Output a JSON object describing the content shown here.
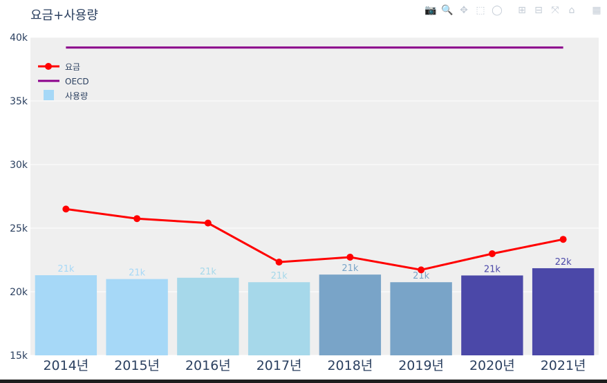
{
  "title": "요금+사용량",
  "modebar": [
    {
      "name": "camera-icon",
      "glyph": "📷"
    },
    {
      "name": "zoom-icon",
      "glyph": "🔍"
    },
    {
      "name": "pan-icon",
      "glyph": "✥"
    },
    {
      "name": "box-select-icon",
      "glyph": "⬚"
    },
    {
      "name": "lasso-icon",
      "glyph": "◯"
    },
    {
      "name": "zoom-in-icon",
      "glyph": "⊞"
    },
    {
      "name": "zoom-out-icon",
      "glyph": "⊟"
    },
    {
      "name": "autoscale-icon",
      "glyph": "⤧"
    },
    {
      "name": "home-icon",
      "glyph": "⌂"
    },
    {
      "name": "plotly-logo-icon",
      "glyph": "▦"
    }
  ],
  "chart_data": {
    "type": "bar",
    "title": "요금+사용량",
    "categories": [
      "2014년",
      "2015년",
      "2016년",
      "2017년",
      "2018년",
      "2019년",
      "2020년",
      "2021년"
    ],
    "ylim": [
      15000,
      40000
    ],
    "yticks": [
      15000,
      20000,
      25000,
      30000,
      35000,
      40000
    ],
    "ytick_labels": [
      "15k",
      "20k",
      "25k",
      "30k",
      "35k",
      "40k"
    ],
    "grid": true,
    "legend_position": "top-left",
    "series": [
      {
        "name": "사용량",
        "type": "bar",
        "values": [
          21300,
          21000,
          21100,
          20750,
          21350,
          20750,
          21280,
          21850
        ],
        "labels": [
          "21k",
          "21k",
          "21k",
          "21k",
          "21k",
          "21k",
          "21k",
          "22k"
        ],
        "colors": [
          "#a6d8f7",
          "#a6d8f7",
          "#a6d8ea",
          "#a6d8ea",
          "#79a4c8",
          "#79a4c8",
          "#4b48a8",
          "#4b48a8"
        ],
        "label_colors": [
          "#a6d8f7",
          "#a6d8f7",
          "#a6d8ea",
          "#a6d8ea",
          "#79a4c8",
          "#79a4c8",
          "#4b48a8",
          "#4b48a8"
        ],
        "legend_color": "#a6d8f7"
      },
      {
        "name": "요금",
        "type": "line",
        "values": [
          26500,
          25750,
          25400,
          22330,
          22720,
          21720,
          22990,
          24120
        ],
        "color": "#ff0000"
      },
      {
        "name": "OECD",
        "type": "line",
        "values": [
          39200,
          39200,
          39200,
          39200,
          39200,
          39200,
          39200,
          39200
        ],
        "color": "#8b008b"
      }
    ]
  }
}
